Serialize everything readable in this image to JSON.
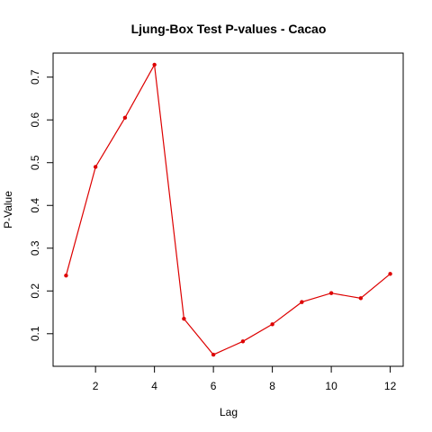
{
  "chart_data": {
    "type": "line",
    "title": "Ljung-Box Test P-values - Cacao",
    "xlabel": "Lag",
    "ylabel": "P-Value",
    "x": [
      1,
      2,
      3,
      4,
      5,
      6,
      7,
      8,
      9,
      10,
      11,
      12
    ],
    "series": [
      {
        "values": [
          0.236,
          0.49,
          0.605,
          0.729,
          0.135,
          0.051,
          0.082,
          0.122,
          0.174,
          0.195,
          0.183,
          0.24
        ],
        "color": "#dd0000"
      }
    ],
    "xlim": [
      0.56,
      12.44
    ],
    "ylim": [
      0.0238,
      0.7562
    ],
    "x_ticks": [
      2,
      4,
      6,
      8,
      10,
      12
    ],
    "y_ticks": [
      0.1,
      0.2,
      0.3,
      0.4,
      0.5,
      0.6,
      0.7
    ],
    "x_tick_labels": [
      "2",
      "4",
      "6",
      "8",
      "10",
      "12"
    ],
    "y_tick_labels": [
      "0.1",
      "0.2",
      "0.3",
      "0.4",
      "0.5",
      "0.6",
      "0.7"
    ],
    "grid": false,
    "legend": "none",
    "marker": "filled-circle"
  }
}
